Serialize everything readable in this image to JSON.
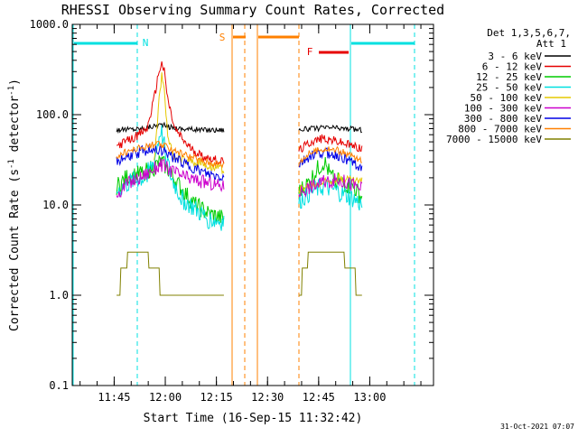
{
  "chart_data": {
    "type": "line",
    "title": "RHESSI Observing Summary Count Rates, Corrected",
    "xlabel": "Start Time (16-Sep-15 11:32:42)",
    "ylabel_parts": [
      "Corrected Count Rate (s",
      "-1",
      " detector",
      "-1",
      ")"
    ],
    "yscale": "log",
    "ylim": [
      0.1,
      1000
    ],
    "xlim_minutes": [
      0,
      106
    ],
    "y_ticks": [
      {
        "v": 0.1,
        "label": "0.1"
      },
      {
        "v": 1,
        "label": "1.0"
      },
      {
        "v": 10,
        "label": "10.0"
      },
      {
        "v": 100,
        "label": "100.0"
      },
      {
        "v": 1000,
        "label": "1000.0"
      }
    ],
    "x_ticks": [
      {
        "m": 12.3,
        "label": "11:45"
      },
      {
        "m": 27.3,
        "label": "12:00"
      },
      {
        "m": 42.3,
        "label": "12:15"
      },
      {
        "m": 57.3,
        "label": "12:30"
      },
      {
        "m": 72.3,
        "label": "12:45"
      },
      {
        "m": 87.3,
        "label": "13:00"
      }
    ],
    "legend": {
      "position": "right",
      "header": [
        "Det 1,3,5,6,7,",
        "Att 1"
      ],
      "entries": [
        {
          "label": "3 - 6 keV",
          "color": "#000000"
        },
        {
          "label": "6 - 12 keV",
          "color": "#e60000"
        },
        {
          "label": "12 - 25 keV",
          "color": "#00cc00"
        },
        {
          "label": "25 - 50 keV",
          "color": "#00e0e0"
        },
        {
          "label": "50 - 100 keV",
          "color": "#e6c800"
        },
        {
          "label": "100 - 300 keV",
          "color": "#cc00cc"
        },
        {
          "label": "300 - 800 keV",
          "color": "#0000e6"
        },
        {
          "label": "800 - 7000 keV",
          "color": "#ff8000"
        },
        {
          "label": "7000 - 15000 keV",
          "color": "#808000"
        }
      ]
    },
    "segments": [
      [
        13.0,
        44.5
      ],
      [
        66.5,
        85.0
      ]
    ],
    "series": [
      {
        "name": "3 - 6 keV",
        "color": "#000000",
        "points": [
          [
            13,
            68
          ],
          [
            20,
            70
          ],
          [
            24,
            75
          ],
          [
            26,
            78
          ],
          [
            28,
            74
          ],
          [
            32,
            70
          ],
          [
            38,
            68
          ],
          [
            44.5,
            68
          ],
          [
            66.5,
            68
          ],
          [
            70,
            70
          ],
          [
            76,
            72
          ],
          [
            80,
            70
          ],
          [
            85,
            68
          ]
        ]
      },
      {
        "name": "6 - 12 keV",
        "color": "#e60000",
        "points": [
          [
            13,
            45
          ],
          [
            18,
            55
          ],
          [
            22,
            70
          ],
          [
            24,
            150
          ],
          [
            25.5,
            310
          ],
          [
            26.3,
            370
          ],
          [
            27,
            300
          ],
          [
            28,
            150
          ],
          [
            30,
            70
          ],
          [
            34,
            45
          ],
          [
            38,
            35
          ],
          [
            44.5,
            30
          ],
          [
            66.5,
            40
          ],
          [
            70,
            50
          ],
          [
            74,
            55
          ],
          [
            78,
            50
          ],
          [
            82,
            45
          ],
          [
            85,
            42
          ]
        ]
      },
      {
        "name": "12 - 25 keV",
        "color": "#00cc00",
        "points": [
          [
            13,
            16
          ],
          [
            16,
            20
          ],
          [
            20,
            22
          ],
          [
            24,
            26
          ],
          [
            26,
            30
          ],
          [
            28,
            25
          ],
          [
            32,
            15
          ],
          [
            36,
            10
          ],
          [
            40,
            8
          ],
          [
            44.5,
            7
          ],
          [
            66.5,
            14
          ],
          [
            69,
            17
          ],
          [
            72,
            25
          ],
          [
            74,
            30
          ],
          [
            76,
            20
          ],
          [
            80,
            17
          ],
          [
            83,
            15
          ],
          [
            85,
            12
          ]
        ]
      },
      {
        "name": "25 - 50 keV",
        "color": "#00e0e0",
        "points": [
          [
            13,
            14
          ],
          [
            17,
            18
          ],
          [
            21,
            20
          ],
          [
            24,
            30
          ],
          [
            26,
            70
          ],
          [
            27,
            45
          ],
          [
            29,
            20
          ],
          [
            32,
            12
          ],
          [
            36,
            9
          ],
          [
            40,
            7
          ],
          [
            44.5,
            6.5
          ],
          [
            66.5,
            11
          ],
          [
            70,
            14
          ],
          [
            74,
            16
          ],
          [
            78,
            14
          ],
          [
            82,
            12
          ],
          [
            85,
            10
          ]
        ]
      },
      {
        "name": "50 - 100 keV",
        "color": "#e6c800",
        "points": [
          [
            24,
            28
          ],
          [
            25.5,
            150
          ],
          [
            26.3,
            280
          ],
          [
            27,
            200
          ],
          [
            28,
            60
          ],
          [
            29.5,
            35
          ],
          [
            66.5,
            15
          ],
          [
            72,
            17
          ],
          [
            78,
            20
          ],
          [
            85,
            18
          ]
        ]
      },
      {
        "name": "100 - 300 keV",
        "color": "#cc00cc",
        "points": [
          [
            13,
            13
          ],
          [
            16,
            17
          ],
          [
            20,
            20
          ],
          [
            24,
            25
          ],
          [
            26,
            28
          ],
          [
            29,
            24
          ],
          [
            33,
            20
          ],
          [
            38,
            18
          ],
          [
            44.5,
            16
          ],
          [
            66.5,
            14
          ],
          [
            70,
            16
          ],
          [
            74,
            18
          ],
          [
            78,
            19
          ],
          [
            82,
            17
          ],
          [
            85,
            15
          ]
        ]
      },
      {
        "name": "300 - 800 keV",
        "color": "#0000e6",
        "points": [
          [
            13,
            30
          ],
          [
            17,
            35
          ],
          [
            21,
            40
          ],
          [
            25,
            42
          ],
          [
            29,
            35
          ],
          [
            34,
            27
          ],
          [
            39,
            22
          ],
          [
            44.5,
            20
          ],
          [
            66.5,
            28
          ],
          [
            70,
            35
          ],
          [
            74,
            38
          ],
          [
            78,
            35
          ],
          [
            82,
            30
          ],
          [
            85,
            26
          ]
        ]
      },
      {
        "name": "800 - 7000 keV",
        "color": "#ff8000",
        "points": [
          [
            13,
            35
          ],
          [
            17,
            40
          ],
          [
            21,
            44
          ],
          [
            25,
            47
          ],
          [
            29,
            42
          ],
          [
            34,
            35
          ],
          [
            39,
            30
          ],
          [
            44.5,
            28
          ],
          [
            66.5,
            30
          ],
          [
            70,
            38
          ],
          [
            74,
            42
          ],
          [
            78,
            40
          ],
          [
            82,
            35
          ],
          [
            85,
            30
          ]
        ]
      },
      {
        "name": "7000 - 15000 keV",
        "color": "#808000",
        "points": [
          [
            13,
            1
          ],
          [
            15,
            2
          ],
          [
            17,
            3
          ],
          [
            21,
            3
          ],
          [
            24,
            2
          ],
          [
            28,
            1
          ],
          [
            34,
            1
          ],
          [
            44.5,
            1
          ],
          [
            66.5,
            1
          ],
          [
            68,
            2
          ],
          [
            70,
            3
          ],
          [
            78,
            3
          ],
          [
            82,
            2
          ],
          [
            85,
            1
          ]
        ]
      }
    ],
    "annotations": [
      {
        "label": "N",
        "color": "#00e0e0"
      },
      {
        "label": "S",
        "color": "#ff8000"
      },
      {
        "label": "F",
        "color": "#e60000"
      }
    ],
    "footer": "31-Oct-2021 07:07"
  }
}
